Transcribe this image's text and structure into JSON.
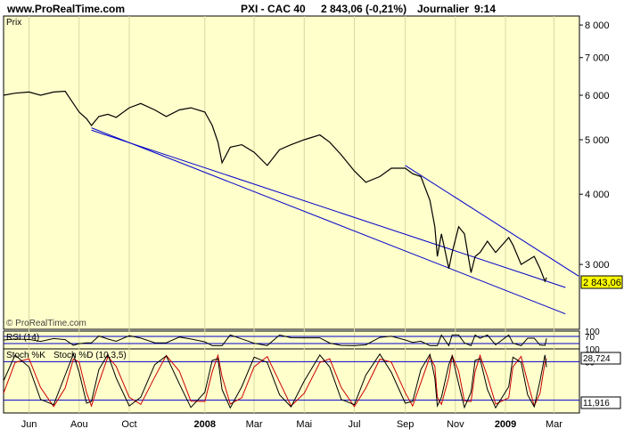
{
  "header": {
    "site": "www.ProRealTime.com",
    "instrument": "PXI - CAC 40",
    "quote": "2 843,06 (-0,21%)",
    "period": "Journalier",
    "time": "9:14"
  },
  "watermark": "© ProRealTime.com",
  "colors": {
    "panel_bg": "#ffffcc",
    "price_line": "#000000",
    "trend_lines": "#0000cc",
    "rsi_levels": "#0000cc",
    "stoch_k": "#000000",
    "stoch_d": "#cc0000",
    "last_box_bg": "#ffff00"
  },
  "chart_data": [
    {
      "type": "line",
      "title": "Prix",
      "scale": "log",
      "ylim": [
        2300,
        8300
      ],
      "y_ticks": [
        8000,
        7000,
        6000,
        5000,
        4000,
        3000
      ],
      "y_tick_labels": [
        "8 000",
        "7 000",
        "6 000",
        "5 000",
        "4 000",
        "3 000"
      ],
      "last_value_label": "2 843,06",
      "last_value": 2843.06,
      "x_tick_labels": [
        "Jun",
        "Aou",
        "Oct",
        "2008",
        "Mar",
        "Mai",
        "Jul",
        "Sep",
        "Nov",
        "2009",
        "Mar"
      ],
      "x_tick_dates": [
        "2007-06-01",
        "2007-08-01",
        "2007-10-01",
        "2008-01-01",
        "2008-03-01",
        "2008-05-01",
        "2008-07-01",
        "2008-09-01",
        "2008-11-01",
        "2009-01-01",
        "2009-03-01"
      ],
      "xlim": [
        "2007-05-01",
        "2009-04-01"
      ],
      "series": [
        {
          "points": [
            [
              "2007-05-01",
              6000
            ],
            [
              "2007-05-15",
              6050
            ],
            [
              "2007-06-01",
              6080
            ],
            [
              "2007-06-15",
              6000
            ],
            [
              "2007-07-01",
              6080
            ],
            [
              "2007-07-15",
              6100
            ],
            [
              "2007-07-25",
              5800
            ],
            [
              "2007-08-01",
              5600
            ],
            [
              "2007-08-10",
              5450
            ],
            [
              "2007-08-16",
              5300
            ],
            [
              "2007-08-25",
              5500
            ],
            [
              "2007-09-05",
              5550
            ],
            [
              "2007-09-15",
              5480
            ],
            [
              "2007-10-01",
              5700
            ],
            [
              "2007-10-15",
              5800
            ],
            [
              "2007-11-01",
              5650
            ],
            [
              "2007-11-15",
              5500
            ],
            [
              "2007-12-01",
              5650
            ],
            [
              "2007-12-15",
              5700
            ],
            [
              "2008-01-01",
              5600
            ],
            [
              "2008-01-10",
              5300
            ],
            [
              "2008-01-17",
              4950
            ],
            [
              "2008-01-22",
              4550
            ],
            [
              "2008-02-01",
              4850
            ],
            [
              "2008-02-15",
              4900
            ],
            [
              "2008-03-01",
              4750
            ],
            [
              "2008-03-17",
              4500
            ],
            [
              "2008-04-01",
              4800
            ],
            [
              "2008-04-15",
              4900
            ],
            [
              "2008-05-01",
              5000
            ],
            [
              "2008-05-20",
              5100
            ],
            [
              "2008-06-01",
              4950
            ],
            [
              "2008-06-15",
              4700
            ],
            [
              "2008-07-01",
              4400
            ],
            [
              "2008-07-15",
              4200
            ],
            [
              "2008-08-01",
              4300
            ],
            [
              "2008-08-15",
              4450
            ],
            [
              "2008-09-01",
              4450
            ],
            [
              "2008-09-10",
              4350
            ],
            [
              "2008-09-20",
              4300
            ],
            [
              "2008-10-01",
              3900
            ],
            [
              "2008-10-07",
              3500
            ],
            [
              "2008-10-10",
              3100
            ],
            [
              "2008-10-15",
              3400
            ],
            [
              "2008-10-24",
              2950
            ],
            [
              "2008-10-28",
              3150
            ],
            [
              "2008-11-05",
              3500
            ],
            [
              "2008-11-12",
              3400
            ],
            [
              "2008-11-20",
              2900
            ],
            [
              "2008-11-25",
              3100
            ],
            [
              "2008-12-01",
              3150
            ],
            [
              "2008-12-10",
              3300
            ],
            [
              "2008-12-20",
              3150
            ],
            [
              "2009-01-05",
              3350
            ],
            [
              "2009-01-10",
              3250
            ],
            [
              "2009-01-20",
              3000
            ],
            [
              "2009-01-28",
              3050
            ],
            [
              "2009-02-05",
              3100
            ],
            [
              "2009-02-12",
              2950
            ],
            [
              "2009-02-18",
              2800
            ],
            [
              "2009-02-20",
              2843
            ]
          ]
        },
        {
          "points": [
            [
              "2007-08-16",
              5200
            ],
            [
              "2009-03-15",
              2730
            ]
          ]
        },
        {
          "points": [
            [
              "2007-08-16",
              5250
            ],
            [
              "2009-03-15",
              2450
            ]
          ]
        },
        {
          "points": [
            [
              "2008-09-01",
              4500
            ],
            [
              "2009-03-31",
              2860
            ]
          ]
        }
      ]
    },
    {
      "type": "line",
      "title": "RSI (14)",
      "ylim": [
        0,
        100
      ],
      "y_ticks": [
        100,
        70
      ],
      "y_tick_labels": [
        "100",
        "70"
      ],
      "levels": [
        70,
        30
      ],
      "last_value_label": "28,724",
      "last_value": 28.724
    },
    {
      "type": "line",
      "title": "Stoch %K",
      "series_names": [
        "Stoch %K",
        "Stoch %D (10,3,5)"
      ],
      "ylim": [
        0,
        100
      ],
      "y_ticks": [
        100,
        80
      ],
      "y_tick_labels": [
        "100",
        "80"
      ],
      "levels": [
        80,
        20
      ],
      "last_value_label": "11,916",
      "last_value": 11.916
    }
  ]
}
